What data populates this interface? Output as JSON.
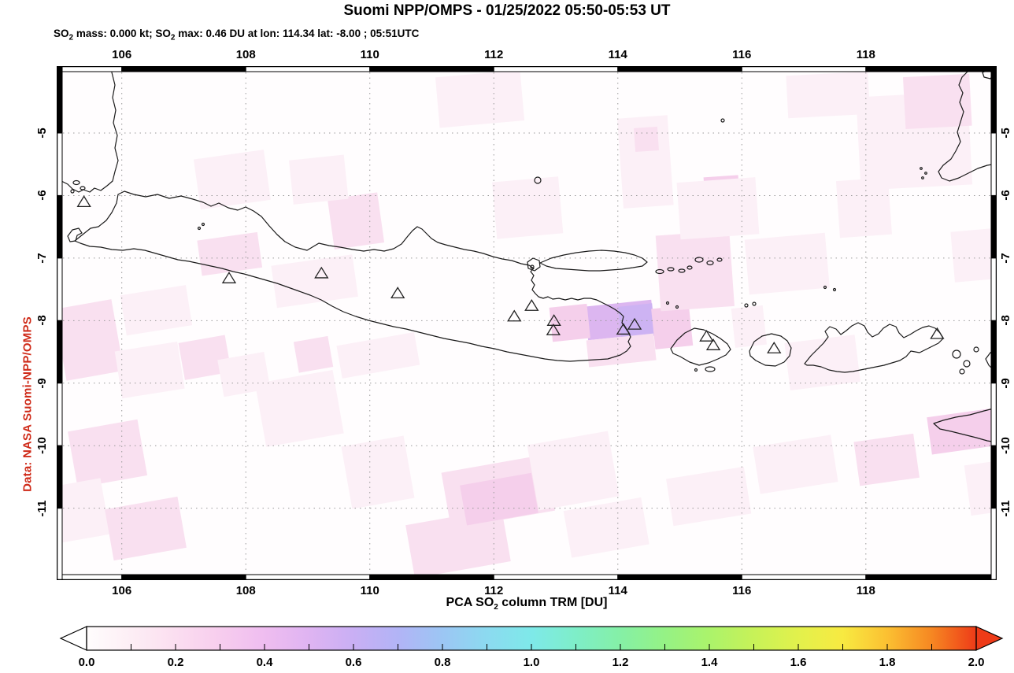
{
  "title": "Suomi NPP/OMPS - 01/25/2022 05:50-05:53 UT",
  "subtitle": {
    "seg1": "SO",
    "sub1": "2",
    "seg2": " mass: 0.000 kt; SO",
    "sub2": "2",
    "seg3": " max: 0.46 DU at lon: 114.34 lat: -8.00 ; 05:51UTC"
  },
  "watermark": "Data: NASA Suomi-NPP/OMPS",
  "axis": {
    "lon_ticks": [
      106,
      108,
      110,
      112,
      114,
      116,
      118
    ],
    "lat_ticks": [
      -5,
      -6,
      -7,
      -8,
      -9,
      -10,
      -11
    ],
    "lon_min": 104.95,
    "lon_max": 120.11,
    "lat_top": -3.93,
    "lat_bottom": -12.15
  },
  "colorbar": {
    "title_seg1": "PCA SO",
    "title_sub": "2",
    "title_seg2": " column TRM [DU]",
    "tick_labels": [
      "0.0",
      "0.2",
      "0.4",
      "0.6",
      "0.8",
      "1.0",
      "1.2",
      "1.4",
      "1.6",
      "1.8",
      "2.0"
    ],
    "min": 0.0,
    "max": 2.0,
    "minor_step": 0.1,
    "arrow_left_fill": "#ffffff",
    "arrow_right_fill": "#ee3b18",
    "gradient": [
      [
        0.0,
        "#fffdfd"
      ],
      [
        0.1,
        "#fdeef5"
      ],
      [
        0.2,
        "#fbdef0"
      ],
      [
        0.3,
        "#f7cdee"
      ],
      [
        0.4,
        "#efbdf0"
      ],
      [
        0.5,
        "#dfb4f2"
      ],
      [
        0.6,
        "#c9aff4"
      ],
      [
        0.7,
        "#b2b4f6"
      ],
      [
        0.8,
        "#9cc6f4"
      ],
      [
        0.9,
        "#8cdaf0"
      ],
      [
        1.0,
        "#7ee9e9"
      ],
      [
        1.1,
        "#7eeec8"
      ],
      [
        1.2,
        "#85f0a6"
      ],
      [
        1.3,
        "#95f285"
      ],
      [
        1.4,
        "#abf36b"
      ],
      [
        1.5,
        "#c7f258"
      ],
      [
        1.6,
        "#e2f14c"
      ],
      [
        1.7,
        "#f8ea41"
      ],
      [
        1.8,
        "#fbc032"
      ],
      [
        1.9,
        "#f68722"
      ],
      [
        2.0,
        "#ee3b18"
      ]
    ]
  },
  "grid_color": "#999999",
  "coast_color": "#1a1a1a",
  "patch_colors": {
    "c1": "#fcf0f7",
    "c2": "#f9e0f0",
    "c3": "#f5cfeb",
    "max": "#dcb6f0",
    "core": "#cdb3f3"
  },
  "volcanoes": [
    {
      "lon": 105.39,
      "lat": -6.1
    },
    {
      "lon": 107.73,
      "lat": -7.32
    },
    {
      "lon": 109.22,
      "lat": -7.24
    },
    {
      "lon": 110.45,
      "lat": -7.56
    },
    {
      "lon": 112.33,
      "lat": -7.93
    },
    {
      "lon": 112.61,
      "lat": -7.76
    },
    {
      "lon": 112.97,
      "lat": -8.0
    },
    {
      "lon": 112.96,
      "lat": -8.15
    },
    {
      "lon": 114.09,
      "lat": -8.14
    },
    {
      "lon": 114.27,
      "lat": -8.06
    },
    {
      "lon": 115.43,
      "lat": -8.25
    },
    {
      "lon": 115.54,
      "lat": -8.39
    },
    {
      "lon": 116.52,
      "lat": -8.44
    },
    {
      "lon": 119.15,
      "lat": -8.21
    }
  ],
  "so2_patches": [
    {
      "lon": 113.49,
      "lat": -7.72,
      "dlon": 1.08,
      "dlat": 0.54,
      "level": "max",
      "rot": -6
    },
    {
      "lon": 114.03,
      "lat": -7.75,
      "dlon": 0.55,
      "dlat": 0.52,
      "level": "core",
      "rot": -6
    },
    {
      "lon": 112.92,
      "lat": -7.76,
      "dlon": 0.61,
      "dlat": 0.55,
      "level": "c3",
      "rot": -6
    },
    {
      "lon": 114.57,
      "lat": -7.78,
      "dlon": 0.61,
      "dlat": 0.65,
      "level": "c3",
      "rot": -6
    },
    {
      "lon": 113.51,
      "lat": -8.26,
      "dlon": 1.09,
      "dlat": 0.43,
      "level": "c2",
      "rot": -6
    },
    {
      "lon": 114.65,
      "lat": -6.6,
      "dlon": 1.19,
      "dlat": 1.21,
      "level": "c2",
      "rot": -4
    },
    {
      "lon": 115.4,
      "lat": -5.69,
      "dlon": 0.56,
      "dlat": 0.55,
      "level": "c3",
      "rot": -4
    },
    {
      "lon": 114.98,
      "lat": -5.75,
      "dlon": 1.27,
      "dlat": 0.91,
      "level": "c1",
      "rot": -4
    },
    {
      "lon": 117.88,
      "lat": -4.38,
      "dlon": 1.8,
      "dlat": 1.49,
      "level": "c1",
      "rot": -3
    },
    {
      "lon": 118.62,
      "lat": -4.08,
      "dlon": 1.07,
      "dlat": 0.83,
      "level": "c2",
      "rot": -3
    },
    {
      "lon": 114.04,
      "lat": -4.74,
      "dlon": 0.81,
      "dlat": 1.44,
      "level": "c1",
      "rot": -4
    },
    {
      "lon": 114.27,
      "lat": -4.91,
      "dlon": 0.38,
      "dlat": 0.38,
      "level": "c2",
      "rot": -4
    },
    {
      "lon": 109.37,
      "lat": -6.0,
      "dlon": 0.81,
      "dlat": 0.81,
      "level": "c2",
      "rot": -8
    },
    {
      "lon": 107.21,
      "lat": -5.34,
      "dlon": 1.14,
      "dlat": 0.81,
      "level": "c1",
      "rot": -8
    },
    {
      "lon": 108.45,
      "lat": -7.03,
      "dlon": 1.32,
      "dlat": 0.68,
      "level": "c1",
      "rot": -8
    },
    {
      "lon": 107.25,
      "lat": -6.65,
      "dlon": 0.98,
      "dlat": 0.57,
      "level": "c2",
      "rot": -8
    },
    {
      "lon": 105.0,
      "lat": -7.73,
      "dlon": 0.94,
      "dlat": 1.16,
      "level": "c2",
      "rot": -10
    },
    {
      "lon": 105.2,
      "lat": -9.67,
      "dlon": 1.14,
      "dlat": 0.91,
      "level": "c2",
      "rot": -10
    },
    {
      "lon": 104.95,
      "lat": -10.58,
      "dlon": 0.79,
      "dlat": 0.91,
      "level": "c1",
      "rot": -10
    },
    {
      "lon": 105.79,
      "lat": -10.91,
      "dlon": 1.19,
      "dlat": 0.83,
      "level": "c2",
      "rot": -10
    },
    {
      "lon": 106.96,
      "lat": -8.29,
      "dlon": 0.76,
      "dlat": 0.6,
      "level": "c2",
      "rot": -10
    },
    {
      "lon": 107.59,
      "lat": -8.56,
      "dlon": 0.76,
      "dlat": 0.6,
      "level": "c1",
      "rot": -10
    },
    {
      "lon": 108.23,
      "lat": -8.89,
      "dlon": 1.27,
      "dlat": 1.03,
      "level": "c1",
      "rot": -10
    },
    {
      "lon": 108.81,
      "lat": -8.29,
      "dlon": 0.56,
      "dlat": 0.5,
      "level": "c2",
      "rot": -10
    },
    {
      "lon": 109.5,
      "lat": -8.29,
      "dlon": 1.27,
      "dlat": 0.53,
      "level": "c1",
      "rot": -10
    },
    {
      "lon": 110.64,
      "lat": -11.13,
      "dlon": 1.57,
      "dlat": 0.86,
      "level": "c2",
      "rot": -10
    },
    {
      "lon": 111.22,
      "lat": -10.28,
      "dlon": 1.7,
      "dlat": 0.91,
      "level": "c2",
      "rot": -10
    },
    {
      "lon": 111.5,
      "lat": -10.53,
      "dlon": 1.17,
      "dlat": 0.65,
      "level": "c3",
      "rot": -10
    },
    {
      "lon": 112.62,
      "lat": -9.87,
      "dlon": 1.32,
      "dlat": 1.06,
      "level": "c1",
      "rot": -10
    },
    {
      "lon": 117.85,
      "lat": -9.87,
      "dlon": 0.97,
      "dlat": 0.71,
      "level": "c2",
      "rot": -8
    },
    {
      "lon": 119.02,
      "lat": -9.47,
      "dlon": 1.09,
      "dlat": 0.6,
      "level": "c3",
      "rot": -8
    },
    {
      "lon": 119.64,
      "lat": -10.28,
      "dlon": 0.48,
      "dlat": 0.81,
      "level": "c1",
      "rot": -8
    },
    {
      "lon": 116.73,
      "lat": -4.05,
      "dlon": 1.32,
      "dlat": 0.68,
      "level": "c1",
      "rot": -3
    },
    {
      "lon": 111.09,
      "lat": -4.05,
      "dlon": 1.37,
      "dlat": 0.81,
      "level": "c1",
      "rot": -5
    },
    {
      "lon": 112.01,
      "lat": -5.74,
      "dlon": 1.07,
      "dlat": 0.91,
      "level": "c1",
      "rot": -5
    },
    {
      "lon": 115.86,
      "lat": -7.78,
      "dlon": 0.51,
      "dlat": 0.63,
      "level": "c1",
      "rot": -6
    },
    {
      "lon": 116.08,
      "lat": -6.65,
      "dlon": 1.3,
      "dlat": 0.88,
      "level": "c1",
      "rot": -5
    },
    {
      "lon": 114.83,
      "lat": -10.43,
      "dlon": 1.27,
      "dlat": 0.76,
      "level": "c1",
      "rot": -9
    },
    {
      "lon": 116.23,
      "lat": -9.92,
      "dlon": 1.27,
      "dlat": 0.76,
      "level": "c1",
      "rot": -9
    },
    {
      "lon": 109.62,
      "lat": -9.92,
      "dlon": 1.02,
      "dlat": 1.01,
      "level": "c1",
      "rot": -10
    },
    {
      "lon": 113.18,
      "lat": -10.93,
      "dlon": 1.27,
      "dlat": 0.76,
      "level": "c1",
      "rot": -10
    },
    {
      "lon": 106.02,
      "lat": -7.51,
      "dlon": 1.07,
      "dlat": 0.65,
      "level": "c1",
      "rot": -9
    },
    {
      "lon": 117.55,
      "lat": -5.74,
      "dlon": 0.84,
      "dlat": 0.91,
      "level": "c1",
      "rot": -4
    },
    {
      "lon": 108.73,
      "lat": -5.39,
      "dlon": 0.89,
      "dlat": 0.71,
      "level": "c1",
      "rot": -6
    },
    {
      "lon": 105.94,
      "lat": -8.41,
      "dlon": 1.02,
      "dlat": 0.76,
      "level": "c1",
      "rot": -9
    },
    {
      "lon": 116.73,
      "lat": -8.29,
      "dlon": 1.14,
      "dlat": 0.76,
      "level": "c1",
      "rot": -7
    },
    {
      "lon": 119.4,
      "lat": -6.55,
      "dlon": 0.71,
      "dlat": 0.81,
      "level": "c1",
      "rot": -5
    }
  ]
}
